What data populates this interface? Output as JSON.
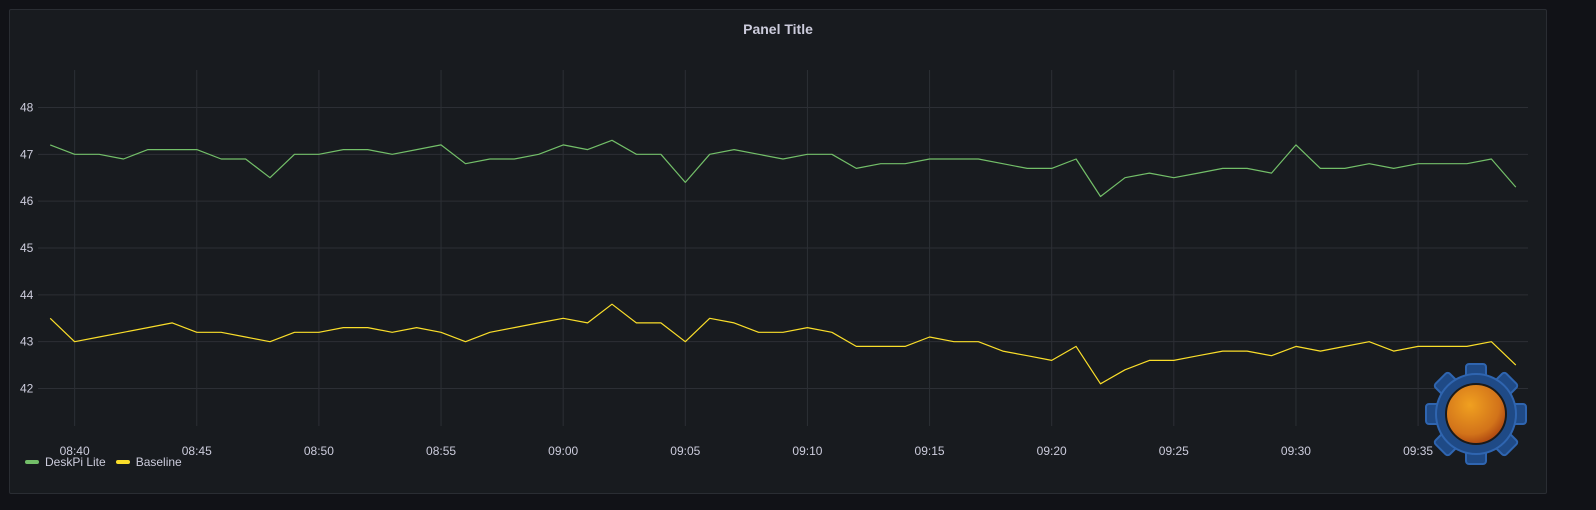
{
  "panel": {
    "title": "Panel Title"
  },
  "chart_data": {
    "type": "line",
    "title": "Panel Title",
    "xlabel": "",
    "ylabel": "",
    "ylim": [
      41.2,
      48.8
    ],
    "yticks": [
      42,
      43,
      44,
      45,
      46,
      47,
      48
    ],
    "xlim": [
      "08:38:30",
      "09:39:30"
    ],
    "xtick_labels": [
      "08:40",
      "08:45",
      "08:50",
      "08:55",
      "09:00",
      "09:05",
      "09:10",
      "09:15",
      "09:20",
      "09:25",
      "09:30",
      "09:35"
    ],
    "grid": true,
    "legend_position": "bottom-left",
    "series": [
      {
        "name": "DeskPi Lite",
        "color": "#73bf69",
        "x": [
          "08:39",
          "08:40",
          "08:41",
          "08:42",
          "08:43",
          "08:44",
          "08:45",
          "08:46",
          "08:47",
          "08:48",
          "08:49",
          "08:50",
          "08:51",
          "08:52",
          "08:53",
          "08:54",
          "08:55",
          "08:56",
          "08:57",
          "08:58",
          "08:59",
          "09:00",
          "09:01",
          "09:02",
          "09:03",
          "09:04",
          "09:05",
          "09:06",
          "09:07",
          "09:08",
          "09:09",
          "09:10",
          "09:11",
          "09:12",
          "09:13",
          "09:14",
          "09:15",
          "09:16",
          "09:17",
          "09:18",
          "09:19",
          "09:20",
          "09:21",
          "09:22",
          "09:23",
          "09:24",
          "09:25",
          "09:26",
          "09:27",
          "09:28",
          "09:29",
          "09:30",
          "09:31",
          "09:32",
          "09:33",
          "09:34",
          "09:35",
          "09:36",
          "09:37",
          "09:38",
          "09:39"
        ],
        "values": [
          47.2,
          47.0,
          47.0,
          46.9,
          47.1,
          47.1,
          47.1,
          46.9,
          46.9,
          46.5,
          47.0,
          47.0,
          47.1,
          47.1,
          47.0,
          47.1,
          47.2,
          46.8,
          46.9,
          46.9,
          47.0,
          47.2,
          47.1,
          47.3,
          47.0,
          47.0,
          46.4,
          47.0,
          47.1,
          47.0,
          46.9,
          47.0,
          47.0,
          46.7,
          46.8,
          46.8,
          46.9,
          46.9,
          46.9,
          46.8,
          46.7,
          46.7,
          46.9,
          46.1,
          46.5,
          46.6,
          46.5,
          46.6,
          46.7,
          46.7,
          46.6,
          47.2,
          46.7,
          46.7,
          46.8,
          46.7,
          46.8,
          46.8,
          46.8,
          46.9,
          46.3
        ]
      },
      {
        "name": "Baseline",
        "color": "#fade2a",
        "x": [
          "08:39",
          "08:40",
          "08:41",
          "08:42",
          "08:43",
          "08:44",
          "08:45",
          "08:46",
          "08:47",
          "08:48",
          "08:49",
          "08:50",
          "08:51",
          "08:52",
          "08:53",
          "08:54",
          "08:55",
          "08:56",
          "08:57",
          "08:58",
          "08:59",
          "09:00",
          "09:01",
          "09:02",
          "09:03",
          "09:04",
          "09:05",
          "09:06",
          "09:07",
          "09:08",
          "09:09",
          "09:10",
          "09:11",
          "09:12",
          "09:13",
          "09:14",
          "09:15",
          "09:16",
          "09:17",
          "09:18",
          "09:19",
          "09:20",
          "09:21",
          "09:22",
          "09:23",
          "09:24",
          "09:25",
          "09:26",
          "09:27",
          "09:28",
          "09:29",
          "09:30",
          "09:31",
          "09:32",
          "09:33",
          "09:34",
          "09:35",
          "09:36",
          "09:37",
          "09:38",
          "09:39"
        ],
        "values": [
          43.5,
          43.0,
          43.1,
          43.2,
          43.3,
          43.4,
          43.2,
          43.2,
          43.1,
          43.0,
          43.2,
          43.2,
          43.3,
          43.3,
          43.2,
          43.3,
          43.2,
          43.0,
          43.2,
          43.3,
          43.4,
          43.5,
          43.4,
          43.8,
          43.4,
          43.4,
          43.0,
          43.5,
          43.4,
          43.2,
          43.2,
          43.3,
          43.2,
          42.9,
          42.9,
          42.9,
          43.1,
          43.0,
          43.0,
          42.8,
          42.7,
          42.6,
          42.9,
          42.1,
          42.4,
          42.6,
          42.6,
          42.7,
          42.8,
          42.8,
          42.7,
          42.9,
          42.8,
          42.9,
          43.0,
          42.8,
          42.9,
          42.9,
          42.9,
          43.0,
          42.5
        ]
      }
    ]
  }
}
